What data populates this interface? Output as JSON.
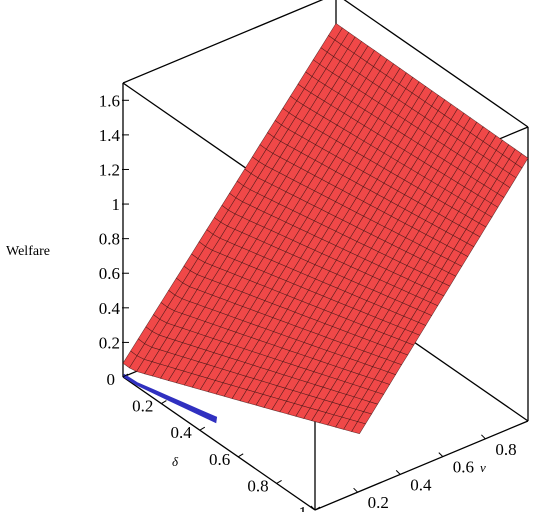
{
  "chart_data": {
    "type": "surface3d",
    "title": "",
    "zlabel": "Welfare",
    "xlabel": "δ",
    "ylabel": "v",
    "x_ticks": [
      "0",
      "0.2",
      "0.4",
      "0.6",
      "0.8",
      "1"
    ],
    "y_ticks": [
      "0",
      "0.2",
      "0.4",
      "0.6",
      "0.8"
    ],
    "z_ticks": [
      "0.2",
      "0.4",
      "0.6",
      "0.8",
      "1",
      "1.2",
      "1.4",
      "1.6"
    ],
    "xlim": [
      0,
      1
    ],
    "ylim": [
      0,
      1
    ],
    "zlim": [
      0,
      1.7
    ],
    "surface_corners": [
      {
        "delta": 0,
        "v": 0,
        "welfare": 0.08
      },
      {
        "delta": 0.4,
        "v": 0,
        "welfare": 0.0
      },
      {
        "delta": 0,
        "v": 1,
        "welfare": 1.55
      },
      {
        "delta": 1,
        "v": 1,
        "welfare": 1.6
      }
    ],
    "surface_color": "#f04848",
    "grid_line_color": "#3a1010",
    "underside_color": "#3030c0",
    "box_color": "#000000"
  }
}
